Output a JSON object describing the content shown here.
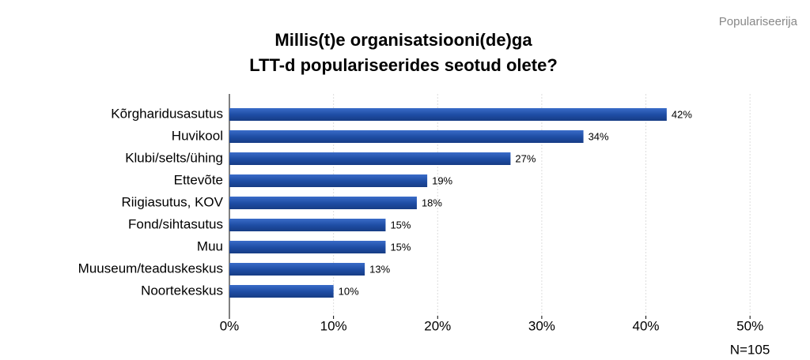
{
  "chart_data": {
    "type": "bar",
    "orientation": "horizontal",
    "source": "Populariseerija",
    "title": [
      "Millis(t)e organisatsiooni(de)ga",
      "LTT-d populariseerides seotud olete?"
    ],
    "annotation": "N=105",
    "categories": [
      "Kõrgharidusasutus",
      "Huvikool",
      "Klubi/selts/ühing",
      "Ettevõte",
      "Riigiasutus, KOV",
      "Fond/sihtasutus",
      "Muu",
      "Muuseum/teaduskeskus",
      "Noortekeskus"
    ],
    "values": [
      42,
      34,
      27,
      19,
      18,
      15,
      15,
      13,
      10
    ],
    "value_labels": [
      "42%",
      "34%",
      "27%",
      "19%",
      "18%",
      "15%",
      "15%",
      "13%",
      "10%"
    ],
    "color": "#1f4ea6",
    "xlim": [
      0,
      55
    ],
    "xticks": [
      {
        "value": 0,
        "label": "0%"
      },
      {
        "value": 10,
        "label": "10%"
      },
      {
        "value": 20,
        "label": "20%"
      },
      {
        "value": 30,
        "label": "30%"
      },
      {
        "value": 40,
        "label": "40%"
      },
      {
        "value": 50,
        "label": "50%"
      }
    ],
    "grid": true
  }
}
